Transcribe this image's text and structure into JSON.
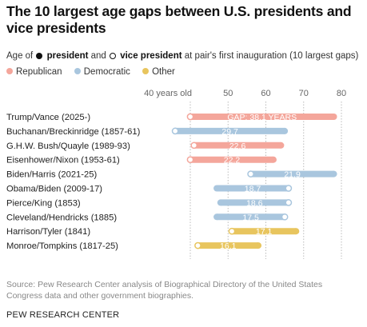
{
  "title": "The 10 largest age gaps between U.S. presidents and vice presidents",
  "subtitle": {
    "prefix": "Age of",
    "president": "president",
    "and": "and",
    "vice_president": "vice president",
    "suffix": "at pair's first inauguration (10 largest gaps)"
  },
  "legend": [
    {
      "label": "Republican",
      "color": "#F4A69B"
    },
    {
      "label": "Democratic",
      "color": "#A9C6DE"
    },
    {
      "label": "Other",
      "color": "#E8C55E"
    }
  ],
  "source": "Source: Pew Research Center analysis of Biographical Directory of the United States Congress data and other government biographies.",
  "brand": "PEW RESEARCH CENTER",
  "chart_data": {
    "type": "dumbbell",
    "xlim": [
      40,
      80
    ],
    "x_ticks": [
      {
        "value": 40,
        "label": "40 years old"
      },
      {
        "value": 50,
        "label": "50"
      },
      {
        "value": 60,
        "label": "60"
      },
      {
        "value": 70,
        "label": "70"
      },
      {
        "value": 80,
        "label": "80"
      }
    ],
    "party_colors": {
      "Republican": "#F4A69B",
      "Democratic": "#A9C6DE",
      "Other": "#E8C55E"
    },
    "rows": [
      {
        "label": "Trump/Vance (2025-)",
        "party": "Republican",
        "president_age": 78,
        "vp_age": 40,
        "gap_label": "GAP: 38.1 YEARS"
      },
      {
        "label": "Buchanan/Breckinridge (1857-61)",
        "party": "Democratic",
        "president_age": 65,
        "vp_age": 36,
        "gap_label": "29.7"
      },
      {
        "label": "G.H.W. Bush/Quayle (1989-93)",
        "party": "Republican",
        "president_age": 64,
        "vp_age": 41,
        "gap_label": "22.6"
      },
      {
        "label": "Eisenhower/Nixon (1953-61)",
        "party": "Republican",
        "president_age": 62,
        "vp_age": 40,
        "gap_label": "22.2"
      },
      {
        "label": "Biden/Harris (2021-25)",
        "party": "Democratic",
        "president_age": 78,
        "vp_age": 56,
        "gap_label": "21.9"
      },
      {
        "label": "Obama/Biden (2009-17)",
        "party": "Democratic",
        "president_age": 47,
        "vp_age": 66,
        "gap_label": "18.7"
      },
      {
        "label": "Pierce/King (1853)",
        "party": "Democratic",
        "president_age": 48,
        "vp_age": 66,
        "gap_label": "18.6"
      },
      {
        "label": "Cleveland/Hendricks (1885)",
        "party": "Democratic",
        "president_age": 47,
        "vp_age": 65,
        "gap_label": "17.5"
      },
      {
        "label": "Harrison/Tyler (1841)",
        "party": "Other",
        "president_age": 68,
        "vp_age": 51,
        "gap_label": "17.1"
      },
      {
        "label": "Monroe/Tompkins (1817-25)",
        "party": "Other",
        "president_age": 58,
        "vp_age": 42,
        "gap_label": "16.1"
      }
    ]
  }
}
